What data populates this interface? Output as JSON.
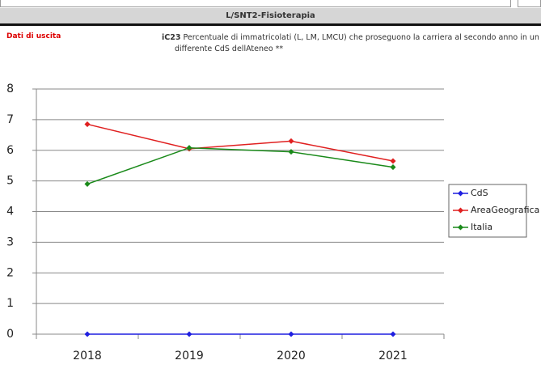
{
  "header": {
    "title": "L/SNT2-Fisioterapia",
    "section": "Dati di uscita",
    "code": "iC23",
    "description": "Percentuale di immatricolati (L, LM, LMCU) che proseguono la carriera al secondo anno in un differente CdS dellAteneo **"
  },
  "chart_data": {
    "type": "line",
    "categories": [
      "2018",
      "2019",
      "2020",
      "2021"
    ],
    "series": [
      {
        "name": "CdS",
        "color": "#1f1fe0",
        "values": [
          0,
          0,
          0,
          0
        ]
      },
      {
        "name": "AreaGeografica",
        "color": "#e02020",
        "values": [
          6.85,
          6.05,
          6.3,
          5.65
        ]
      },
      {
        "name": "Italia",
        "color": "#1a8a1a",
        "values": [
          4.9,
          6.08,
          5.95,
          5.45
        ]
      }
    ],
    "ylim": [
      0,
      8
    ],
    "yticks": [
      0,
      1,
      2,
      3,
      4,
      5,
      6,
      7,
      8
    ],
    "grid": true,
    "legend": "right"
  }
}
